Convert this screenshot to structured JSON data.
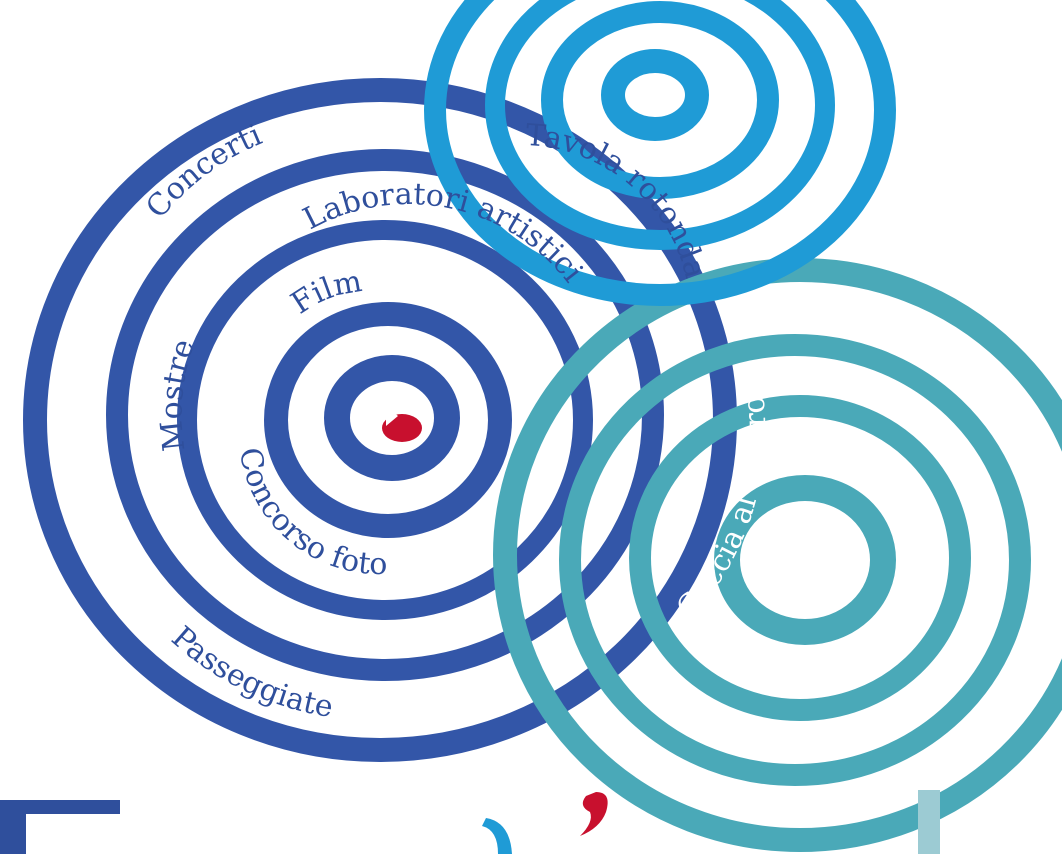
{
  "colors": {
    "dark_blue": "#3356a8",
    "sky_blue": "#1f9bd6",
    "teal": "#4aa9b8",
    "red_dot": "#c8102e",
    "label_dark": "#2f4f9c",
    "label_light": "#ffffff"
  },
  "labels": {
    "concerti": "Concerti",
    "laboratori": "Laboratori artistici",
    "film": "Film",
    "mostre": "Mostre",
    "concorso": "Concorso foto",
    "passeggiate": "Passeggiate",
    "tavola": "Tavola rotonda",
    "caccia": "Caccia al tesoro"
  }
}
